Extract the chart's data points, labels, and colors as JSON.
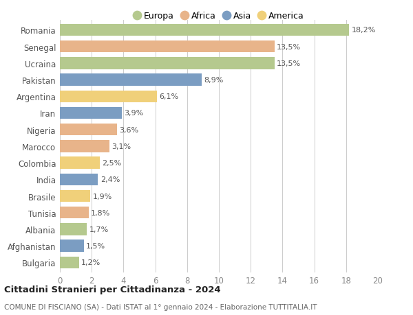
{
  "countries": [
    "Romania",
    "Senegal",
    "Ucraina",
    "Pakistan",
    "Argentina",
    "Iran",
    "Nigeria",
    "Marocco",
    "Colombia",
    "India",
    "Brasile",
    "Tunisia",
    "Albania",
    "Afghanistan",
    "Bulgaria"
  ],
  "values": [
    18.2,
    13.5,
    13.5,
    8.9,
    6.1,
    3.9,
    3.6,
    3.1,
    2.5,
    2.4,
    1.9,
    1.8,
    1.7,
    1.5,
    1.2
  ],
  "labels": [
    "18,2%",
    "13,5%",
    "13,5%",
    "8,9%",
    "6,1%",
    "3,9%",
    "3,6%",
    "3,1%",
    "2,5%",
    "2,4%",
    "1,9%",
    "1,8%",
    "1,7%",
    "1,5%",
    "1,2%"
  ],
  "continents": [
    "Europa",
    "Africa",
    "Europa",
    "Asia",
    "America",
    "Asia",
    "Africa",
    "Africa",
    "America",
    "Asia",
    "America",
    "Africa",
    "Europa",
    "Asia",
    "Europa"
  ],
  "colors": {
    "Europa": "#b5c98e",
    "Africa": "#e8b48a",
    "Asia": "#7b9dc2",
    "America": "#f0d07a"
  },
  "legend_order": [
    "Europa",
    "Africa",
    "Asia",
    "America"
  ],
  "title": "Cittadini Stranieri per Cittadinanza - 2024",
  "subtitle": "COMUNE DI FISCIANO (SA) - Dati ISTAT al 1° gennaio 2024 - Elaborazione TUTTITALIA.IT",
  "xlim": [
    0,
    20
  ],
  "xticks": [
    0,
    2,
    4,
    6,
    8,
    10,
    12,
    14,
    16,
    18,
    20
  ],
  "background_color": "#ffffff",
  "grid_color": "#cccccc",
  "bar_height": 0.72
}
